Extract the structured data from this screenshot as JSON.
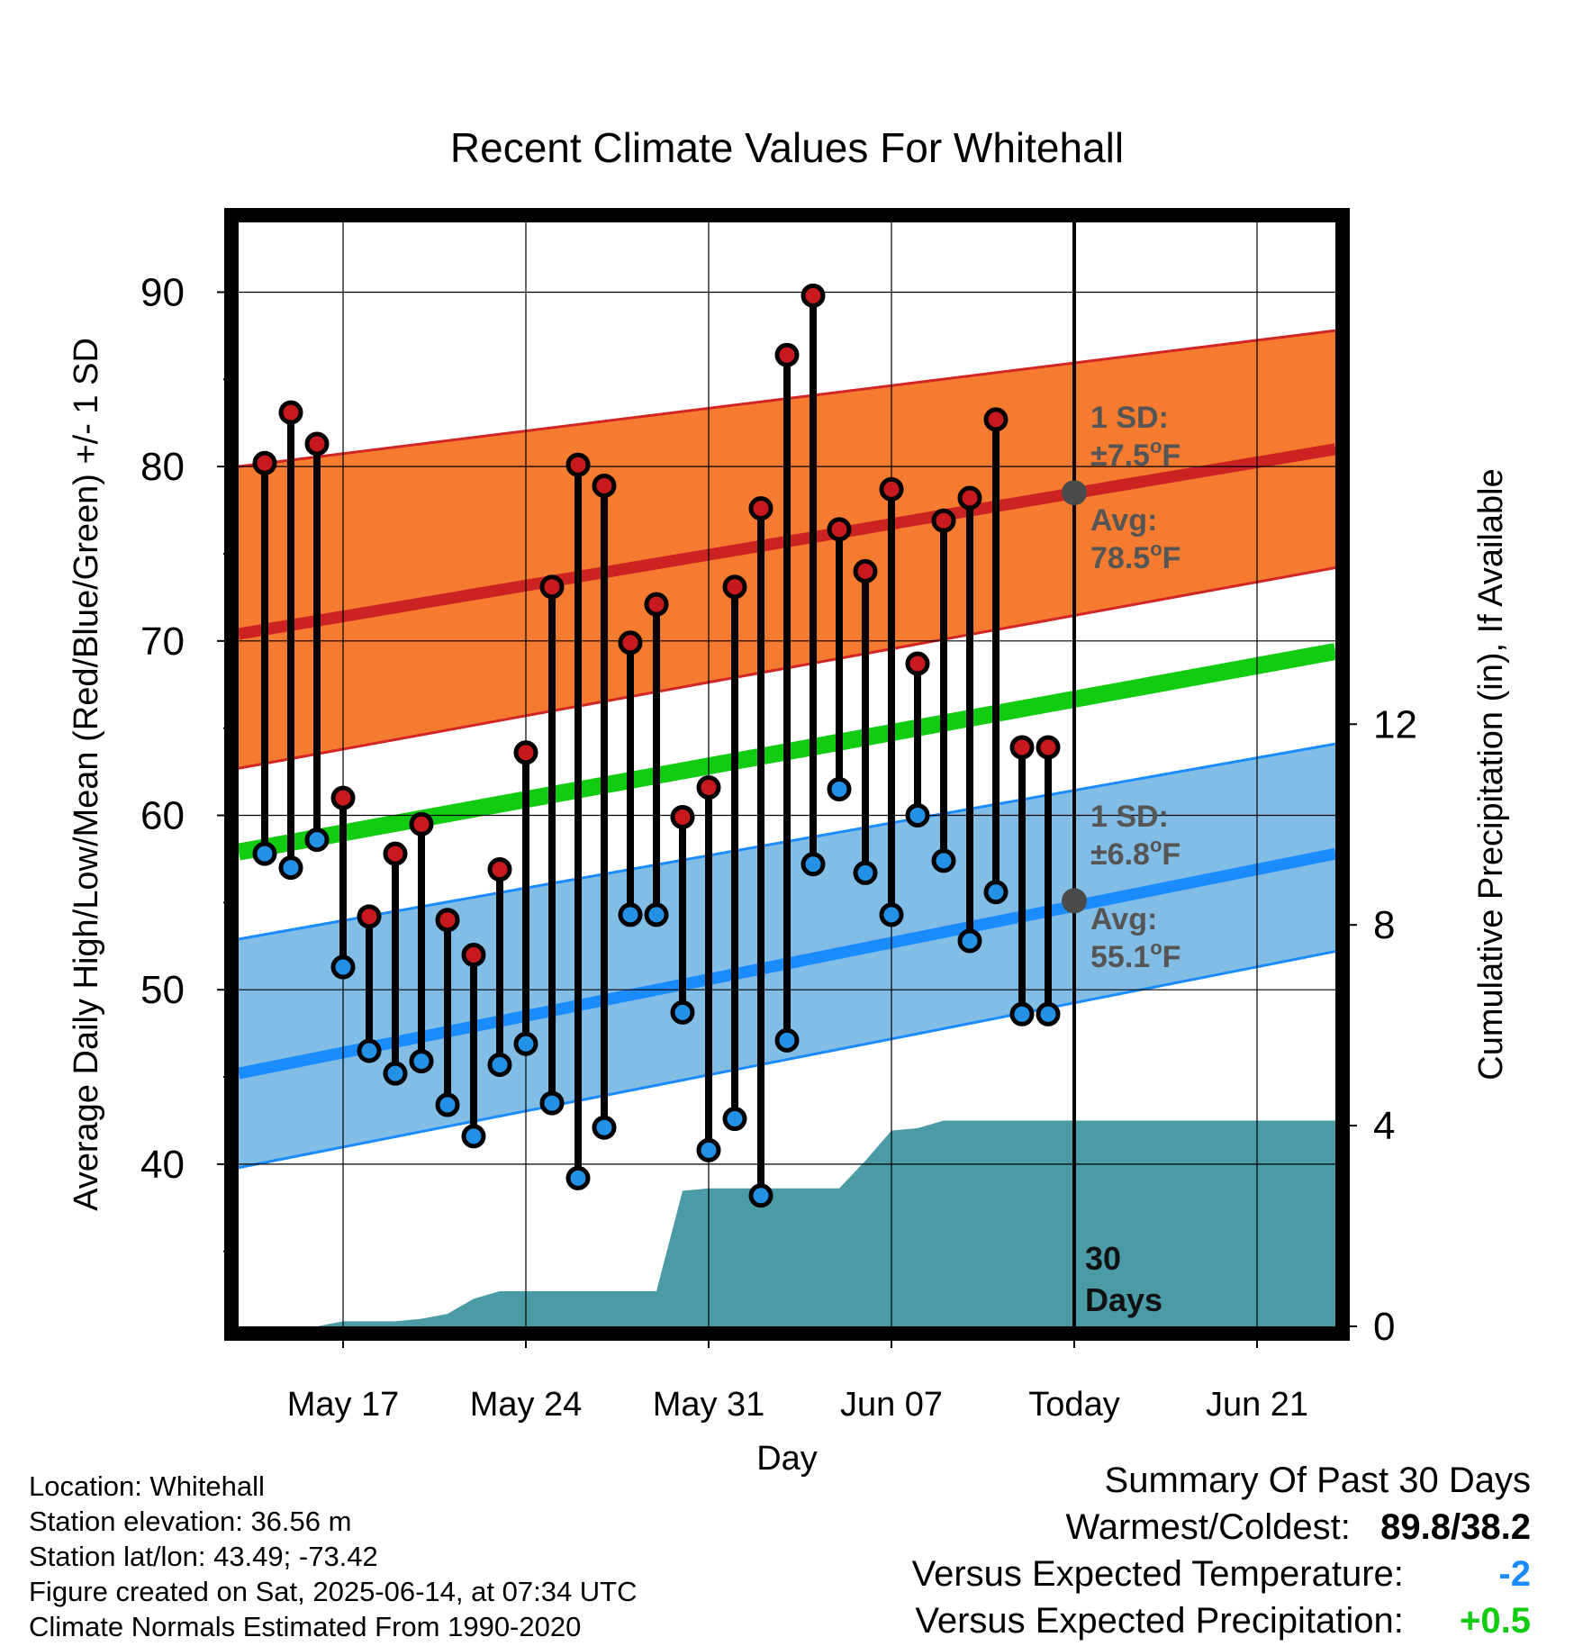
{
  "chart_data": {
    "type": "line",
    "title": "Recent Climate Values For Whitehall",
    "xlabel": "Day",
    "ylabel": "Average Daily High/Low/Mean (Red/Blue/Green) +/- 1 SD",
    "y2label": "Cumulative Precipitation (in), If Available",
    "x_ticks": [
      {
        "date": "2025-05-17",
        "label": "May 17"
      },
      {
        "date": "2025-05-24",
        "label": "May 24"
      },
      {
        "date": "2025-05-31",
        "label": "May 31"
      },
      {
        "date": "2025-06-07",
        "label": "Jun 07"
      },
      {
        "date": "2025-06-14",
        "label": "Today"
      },
      {
        "date": "2025-06-21",
        "label": "Jun 21"
      }
    ],
    "xlim": [
      "2025-05-13",
      "2025-06-24"
    ],
    "ylim": [
      30.7,
      94
    ],
    "y_ticks": [
      40,
      50,
      60,
      70,
      80,
      90
    ],
    "y_minor_ticks": [
      35,
      45,
      55,
      65,
      75,
      85
    ],
    "y2lim": [
      0,
      22
    ],
    "y2_ticks": [
      0,
      4,
      8,
      12
    ],
    "grid": true,
    "colors": {
      "high_band": "#F47B30",
      "high_band_edge": "#D42525",
      "high_mean_line": "#CC2222",
      "low_band": "#82BDE6",
      "low_band_edge": "#1A8CFF",
      "low_mean_line": "#1A8CFF",
      "mean_line": "#11CC11",
      "precip": "#4A9BA5",
      "high_marker": "#C8191E",
      "low_marker": "#2291E6",
      "avg_dot": "#4A4A4A",
      "annotation_text": "#555555"
    },
    "normal_high": {
      "x": [
        "2025-05-13",
        "2025-06-24"
      ],
      "mean": [
        70.4,
        81.0
      ],
      "lower": [
        62.7,
        74.2
      ],
      "upper": [
        80.0,
        87.8
      ]
    },
    "normal_low": {
      "x": [
        "2025-05-13",
        "2025-06-24"
      ],
      "mean": [
        45.2,
        57.8
      ],
      "lower": [
        39.8,
        52.2
      ],
      "upper": [
        52.9,
        64.1
      ]
    },
    "normal_mean": {
      "x": [
        "2025-05-13",
        "2025-06-24"
      ],
      "values": [
        57.9,
        69.4
      ]
    },
    "observed": {
      "dates": [
        "2025-05-14",
        "2025-05-15",
        "2025-05-16",
        "2025-05-17",
        "2025-05-18",
        "2025-05-19",
        "2025-05-20",
        "2025-05-21",
        "2025-05-22",
        "2025-05-23",
        "2025-05-24",
        "2025-05-25",
        "2025-05-26",
        "2025-05-27",
        "2025-05-28",
        "2025-05-29",
        "2025-05-30",
        "2025-05-31",
        "2025-06-01",
        "2025-06-02",
        "2025-06-03",
        "2025-06-04",
        "2025-06-05",
        "2025-06-06",
        "2025-06-07",
        "2025-06-08",
        "2025-06-09",
        "2025-06-10",
        "2025-06-11",
        "2025-06-12",
        "2025-06-13"
      ],
      "highs": [
        80.2,
        83.1,
        81.3,
        61.0,
        54.2,
        57.8,
        59.5,
        54.0,
        52.0,
        56.9,
        63.6,
        73.1,
        80.1,
        78.9,
        69.9,
        72.1,
        59.9,
        61.6,
        73.1,
        77.6,
        86.4,
        89.8,
        76.4,
        74.0,
        78.7,
        68.7,
        76.9,
        78.2,
        82.7,
        63.9,
        63.9
      ],
      "lows": [
        57.8,
        57.0,
        58.6,
        51.3,
        46.5,
        45.2,
        45.9,
        43.4,
        41.6,
        45.7,
        46.9,
        43.5,
        39.2,
        42.1,
        54.3,
        54.3,
        48.7,
        40.8,
        42.6,
        38.2,
        47.1,
        57.2,
        61.5,
        56.7,
        54.3,
        60.0,
        57.4,
        52.8,
        55.6,
        48.6,
        48.6
      ]
    },
    "precipitation": {
      "dates": [
        "2025-05-16",
        "2025-05-17",
        "2025-05-18",
        "2025-05-19",
        "2025-05-20",
        "2025-05-21",
        "2025-05-22",
        "2025-05-23",
        "2025-05-24",
        "2025-05-25",
        "2025-05-29",
        "2025-05-30",
        "2025-05-31",
        "2025-06-05",
        "2025-06-06",
        "2025-06-07",
        "2025-06-08",
        "2025-06-09",
        "2025-06-10",
        "2025-06-24"
      ],
      "cumulative": [
        0,
        0.1,
        0.1,
        0.1,
        0.15,
        0.25,
        0.55,
        0.7,
        0.7,
        0.7,
        0.7,
        2.7,
        2.75,
        2.75,
        3.3,
        3.9,
        3.95,
        4.1,
        4.1,
        4.1
      ]
    },
    "today_marker": {
      "date": "2025-06-14",
      "label_line1": "30",
      "label_line2": "Days"
    },
    "annotations": {
      "high_sd_label": "1 SD:",
      "high_sd_value": "±7.5",
      "high_avg_label": "Avg:",
      "high_avg_value": "78.5",
      "low_sd_label": "1 SD:",
      "low_sd_value": "±6.8",
      "low_avg_label": "Avg:",
      "low_avg_value": "55.1",
      "degree_symbol": "o",
      "unit": "F"
    }
  },
  "info": {
    "location": "Location: Whitehall",
    "elevation": "Station elevation: 36.56 m",
    "latlon": "Station lat/lon: 43.49; -73.42",
    "created": "Figure created on Sat, 2025-06-14, at 07:34 UTC",
    "normals": "Climate Normals Estimated From 1990-2020"
  },
  "summary": {
    "title": "Summary Of Past 30 Days",
    "warm_cold_label": "Warmest/Coldest:",
    "warm_cold_value": "89.8/38.2",
    "temp_label": "Versus Expected Temperature:",
    "temp_value": "-2",
    "temp_color": "#1A8CFF",
    "precip_label": "Versus Expected Precipitation:",
    "precip_value": "+0.5",
    "precip_color": "#11CC11"
  }
}
